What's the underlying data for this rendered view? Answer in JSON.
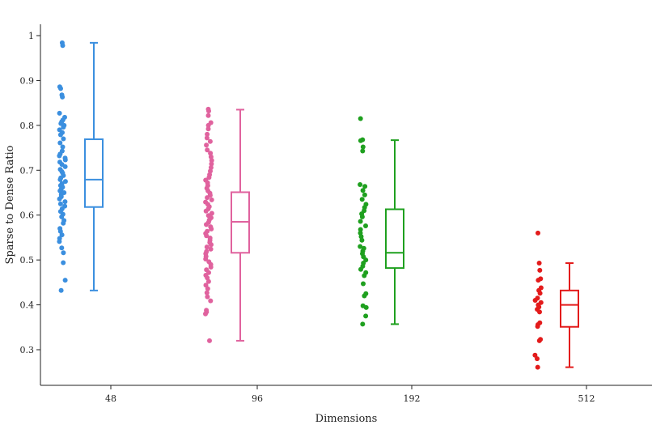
{
  "chart_data": {
    "type": "box",
    "xlabel": "Dimensions",
    "ylabel": "Sparse to Dense Ratio",
    "categories": [
      "48",
      "96",
      "192",
      "512"
    ],
    "ylim": [
      0.22,
      1.03
    ],
    "yticks": [
      0.3,
      0.4,
      0.5,
      0.6,
      0.7,
      0.8,
      0.9,
      1
    ],
    "ytick_labels": [
      "0.3",
      "0.4",
      "0.5",
      "0.6",
      "0.7",
      "0.8",
      "0.9",
      "1"
    ],
    "grid": false,
    "legend": "none",
    "series": [
      {
        "category": "48",
        "color": "#3b8fdf",
        "box": {
          "min": 0.432,
          "q1": 0.618,
          "median": 0.679,
          "q3": 0.769,
          "max": 0.984
        },
        "points": [
          0.984,
          0.978,
          0.886,
          0.882,
          0.868,
          0.863,
          0.827,
          0.818,
          0.812,
          0.808,
          0.804,
          0.8,
          0.796,
          0.79,
          0.784,
          0.779,
          0.77,
          0.761,
          0.752,
          0.743,
          0.736,
          0.732,
          0.727,
          0.723,
          0.718,
          0.713,
          0.708,
          0.702,
          0.697,
          0.694,
          0.688,
          0.683,
          0.679,
          0.675,
          0.67,
          0.666,
          0.662,
          0.658,
          0.654,
          0.65,
          0.646,
          0.641,
          0.636,
          0.63,
          0.625,
          0.62,
          0.614,
          0.608,
          0.602,
          0.596,
          0.588,
          0.582,
          0.57,
          0.564,
          0.556,
          0.548,
          0.541,
          0.527,
          0.516,
          0.494,
          0.455,
          0.432
        ]
      },
      {
        "category": "96",
        "color": "#e0629e",
        "box": {
          "min": 0.32,
          "q1": 0.516,
          "median": 0.585,
          "q3": 0.651,
          "max": 0.835
        },
        "points": [
          0.836,
          0.832,
          0.822,
          0.806,
          0.8,
          0.792,
          0.78,
          0.772,
          0.764,
          0.756,
          0.745,
          0.738,
          0.73,
          0.722,
          0.714,
          0.706,
          0.698,
          0.69,
          0.684,
          0.678,
          0.672,
          0.666,
          0.66,
          0.654,
          0.649,
          0.644,
          0.639,
          0.634,
          0.629,
          0.624,
          0.619,
          0.614,
          0.609,
          0.604,
          0.599,
          0.594,
          0.589,
          0.584,
          0.579,
          0.574,
          0.569,
          0.564,
          0.559,
          0.554,
          0.549,
          0.544,
          0.539,
          0.534,
          0.529,
          0.524,
          0.519,
          0.514,
          0.508,
          0.502,
          0.496,
          0.49,
          0.484,
          0.478,
          0.472,
          0.466,
          0.46,
          0.452,
          0.444,
          0.436,
          0.427,
          0.418,
          0.409,
          0.388,
          0.384,
          0.38,
          0.32
        ]
      },
      {
        "category": "192",
        "color": "#1fa01f",
        "box": {
          "min": 0.357,
          "q1": 0.482,
          "median": 0.516,
          "q3": 0.613,
          "max": 0.767
        },
        "points": [
          0.815,
          0.768,
          0.766,
          0.752,
          0.743,
          0.668,
          0.664,
          0.655,
          0.645,
          0.635,
          0.624,
          0.617,
          0.61,
          0.603,
          0.596,
          0.586,
          0.576,
          0.568,
          0.56,
          0.552,
          0.544,
          0.53,
          0.526,
          0.52,
          0.514,
          0.507,
          0.5,
          0.493,
          0.486,
          0.479,
          0.472,
          0.465,
          0.447,
          0.425,
          0.42,
          0.398,
          0.394,
          0.375,
          0.357
        ]
      },
      {
        "category": "512",
        "color": "#e31b1b",
        "box": {
          "min": 0.261,
          "q1": 0.351,
          "median": 0.4,
          "q3": 0.432,
          "max": 0.493
        },
        "points": [
          0.56,
          0.493,
          0.477,
          0.458,
          0.455,
          0.438,
          0.432,
          0.426,
          0.415,
          0.41,
          0.405,
          0.4,
          0.395,
          0.39,
          0.384,
          0.36,
          0.356,
          0.352,
          0.323,
          0.32,
          0.288,
          0.28,
          0.261
        ]
      }
    ]
  }
}
